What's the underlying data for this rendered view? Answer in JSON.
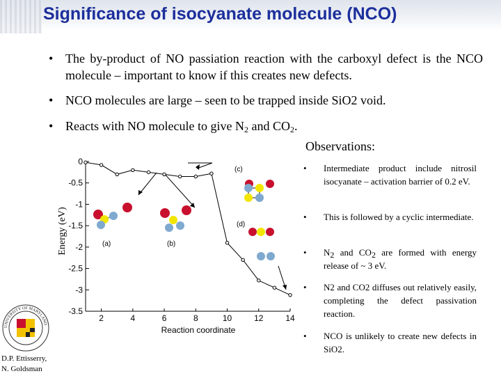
{
  "slide": {
    "title": "Significance of isocyanate molecule (NCO)",
    "bullets": [
      {
        "text": "The by-product of NO passiation reaction with the carboxyl defect is the NCO molecule – important to know if this creates new defects."
      },
      {
        "text": "NCO molecules are large – seen to be trapped inside SiO2 void."
      },
      {
        "pre": "Reacts with NO molecule to give N",
        "sub1": "2",
        "mid": " and CO",
        "sub2": "2",
        "post": "."
      }
    ],
    "bullet_symbol": "•",
    "observations": {
      "heading": "Observations:",
      "items": [
        {
          "text": "Intermediate product include nitrosil isocyanate – activation barrier of 0.2 eV."
        },
        {
          "text": "This is followed by a cyclic intermediate."
        },
        {
          "pre": "N",
          "sub1": "2",
          "mid": " and CO",
          "sub2": "2",
          "post": " are formed with energy release of ~ 3 eV."
        },
        {
          "text": "N2 and CO2 diffuses out relatively easily, completing the defect passivation reaction."
        },
        {
          "text": "NCO is unlikely to create new defects in SiO2."
        }
      ]
    },
    "author": {
      "line1": "D.P. Ettisserry,",
      "line2": "N. Goldsman"
    },
    "seal": {
      "text": "UNIVERSITY OF MARYLAND",
      "icon": "university-of-maryland-seal"
    }
  },
  "chart_data": {
    "type": "line",
    "xlabel": "Reaction coordinate",
    "ylabel": "Energy (eV)",
    "xlim": [
      1,
      14
    ],
    "ylim": [
      -3.5,
      0
    ],
    "x_ticks": [
      "2",
      "4",
      "6",
      "8",
      "10",
      "12",
      "14"
    ],
    "y_ticks": [
      "0",
      "-0.5",
      "-1",
      "-1.5",
      "-2",
      "-2.5",
      "-3",
      "-3.5"
    ],
    "series": [
      {
        "x": [
          1,
          2,
          3,
          4,
          5,
          6,
          7,
          8,
          9,
          10,
          11,
          12,
          13,
          14
        ],
        "y": [
          -0.02,
          -0.08,
          -0.3,
          -0.2,
          -0.25,
          -0.3,
          -0.35,
          -0.35,
          -0.28,
          -1.9,
          -2.3,
          -2.78,
          -2.95,
          -3.12
        ]
      }
    ],
    "annotations": [
      "(a)",
      "(b)",
      "(c)",
      "(d)"
    ],
    "grid": false,
    "colors": {
      "line": "#000000",
      "oxygen": "#c8102e",
      "nitrogen": "#7fa9cf",
      "carbon": "#f2e600"
    }
  }
}
